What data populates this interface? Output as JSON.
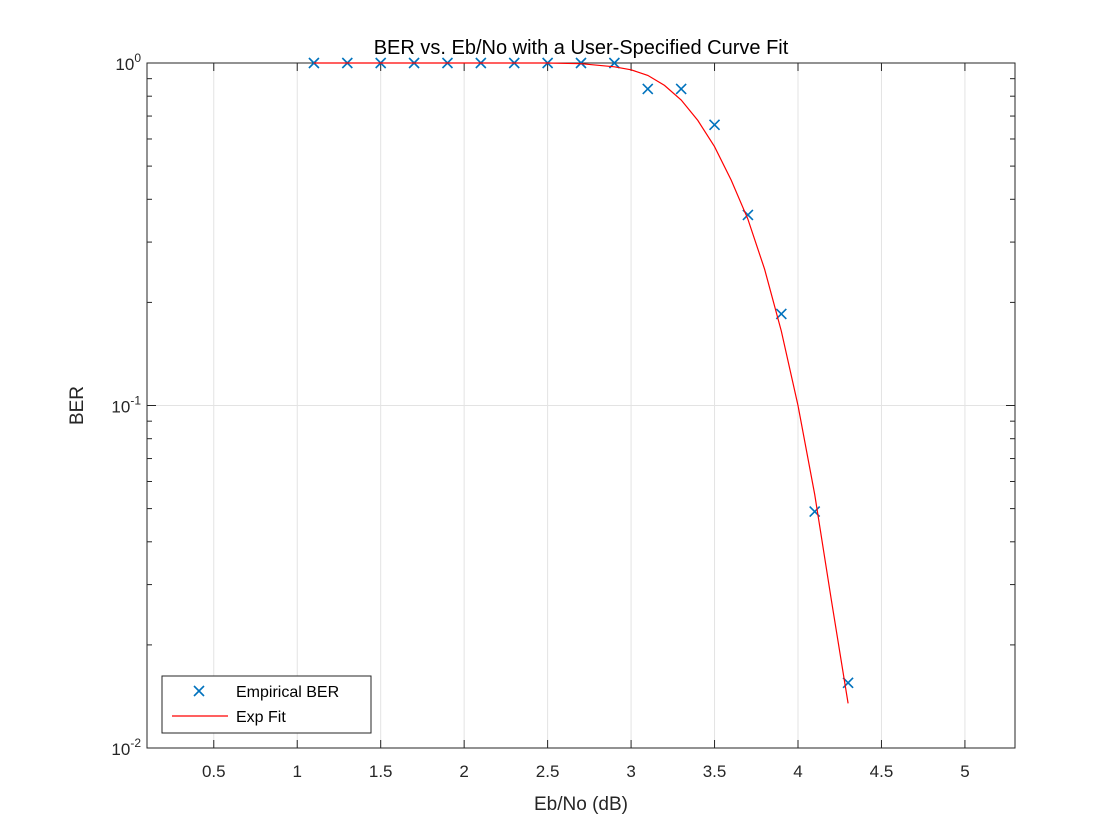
{
  "chart_data": {
    "type": "scatter",
    "title": "BER vs. Eb/No with a User-Specified Curve Fit",
    "xlabel": "Eb/No (dB)",
    "ylabel": "BER",
    "xlim": [
      0.1,
      5.3
    ],
    "ylim": [
      0.01,
      1
    ],
    "y_scale": "log",
    "grid": true,
    "legend_position": "bottom-left",
    "x_ticks": [
      "0.5",
      "1",
      "1.5",
      "2",
      "2.5",
      "3",
      "3.5",
      "4",
      "4.5",
      "5"
    ],
    "x_tick_values": [
      0.5,
      1,
      1.5,
      2,
      2.5,
      3,
      3.5,
      4,
      4.5,
      5
    ],
    "y_ticks": [
      {
        "base": "10",
        "exp": "-2",
        "value": 0.01
      },
      {
        "base": "10",
        "exp": "-1",
        "value": 0.1
      },
      {
        "base": "10",
        "exp": "0",
        "value": 1
      }
    ],
    "series": [
      {
        "name": "Empirical BER",
        "kind": "markers",
        "marker": "x",
        "color": "#0072BD",
        "x": [
          1.1,
          1.3,
          1.5,
          1.7,
          1.9,
          2.1,
          2.3,
          2.5,
          2.7,
          2.9,
          3.1,
          3.3,
          3.5,
          3.7,
          3.9,
          4.1,
          4.3
        ],
        "y": [
          1,
          1,
          1,
          1,
          1,
          1,
          1,
          1,
          1,
          1,
          0.84,
          0.84,
          0.66,
          0.36,
          0.185,
          0.049,
          0.0155
        ]
      },
      {
        "name": "Exp Fit",
        "kind": "line",
        "color": "#FF0000",
        "x": [
          1.1,
          1.5,
          2.0,
          2.5,
          2.7,
          2.9,
          3.0,
          3.1,
          3.2,
          3.3,
          3.4,
          3.5,
          3.6,
          3.7,
          3.8,
          3.9,
          4.0,
          4.1,
          4.2,
          4.3
        ],
        "y": [
          1,
          1,
          1,
          1,
          0.995,
          0.975,
          0.955,
          0.92,
          0.86,
          0.78,
          0.68,
          0.57,
          0.455,
          0.35,
          0.25,
          0.165,
          0.1,
          0.055,
          0.027,
          0.0135
        ]
      }
    ]
  }
}
